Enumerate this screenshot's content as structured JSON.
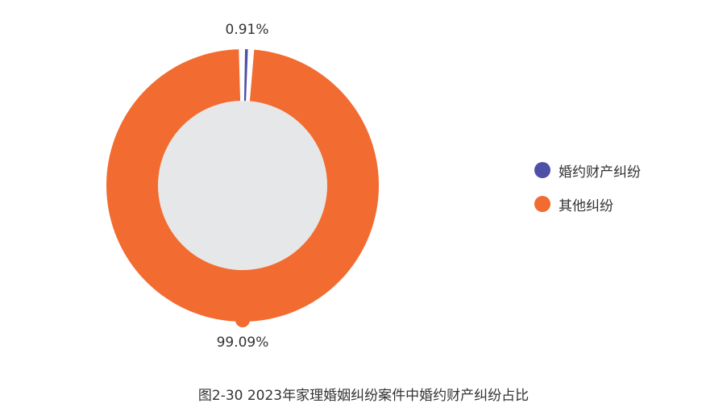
{
  "chart_data": {
    "type": "pie",
    "title": "图2-30  2023年家理婚姻纠纷案件中婚约财产纠纷占比",
    "legend_position": "right",
    "slices": [
      {
        "name": "婚约财产纠纷",
        "value": 0.91,
        "label": "0.91%",
        "color": "#4e4fa6"
      },
      {
        "name": "其他纠纷",
        "value": 99.09,
        "label": "99.09%",
        "color": "#f26b30"
      }
    ],
    "center_color": "#e6e7e8"
  }
}
